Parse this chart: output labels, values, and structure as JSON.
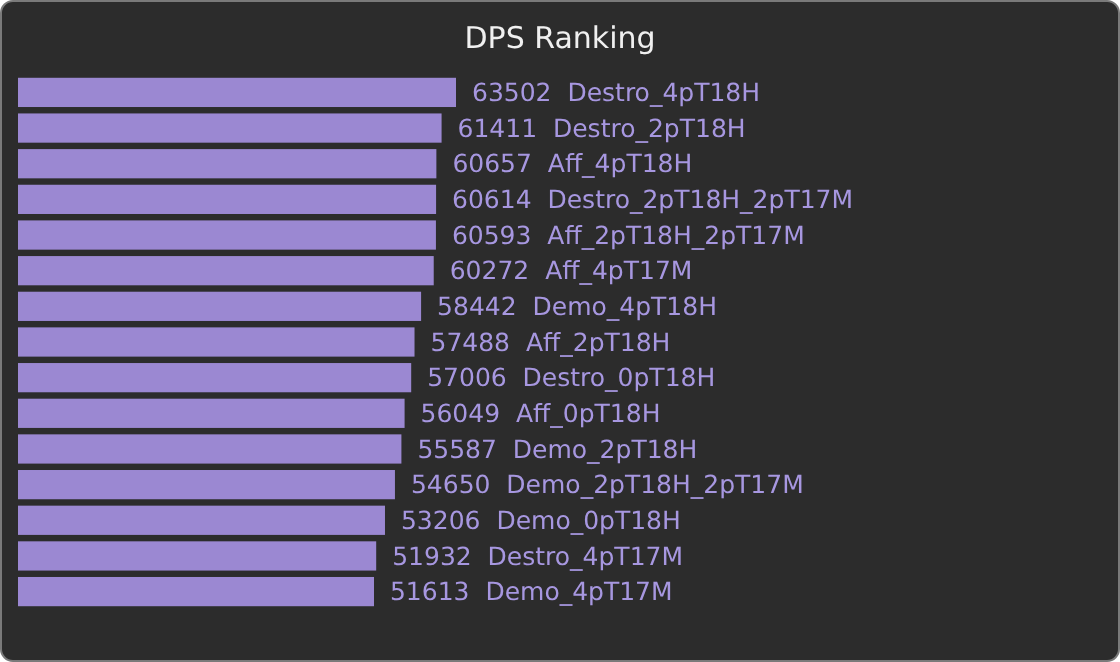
{
  "chart_data": {
    "type": "bar",
    "orientation": "horizontal",
    "title": "DPS Ranking",
    "color": "#9b88d2",
    "categories": [
      null,
      null,
      null,
      null,
      null,
      null,
      null,
      null,
      null,
      null,
      null,
      null,
      null,
      null,
      null
    ],
    "values": [
      63502,
      61411,
      60657,
      60614,
      60593,
      60272,
      58442,
      57488,
      57006,
      56049,
      55587,
      54650,
      53206,
      51932,
      51613
    ],
    "value_labels": [
      "63502  Destro_4pT18H",
      "61411  Destro_2pT18H",
      "60657  Aff_4pT18H",
      "60614  Destro_2pT18H_2pT17M",
      "60593  Aff_2pT18H_2pT17M",
      "60272  Aff_4pT17M",
      "58442  Demo_4pT18H",
      "57488  Aff_2pT18H",
      "57006  Destro_0pT18H",
      "56049  Aff_0pT18H",
      "55587  Demo_2pT18H",
      "54650  Demo_2pT18H_2pT17M",
      "53206  Demo_0pT18H",
      "51932  Destro_4pT17M",
      "51613  Demo_4pT17M"
    ]
  }
}
